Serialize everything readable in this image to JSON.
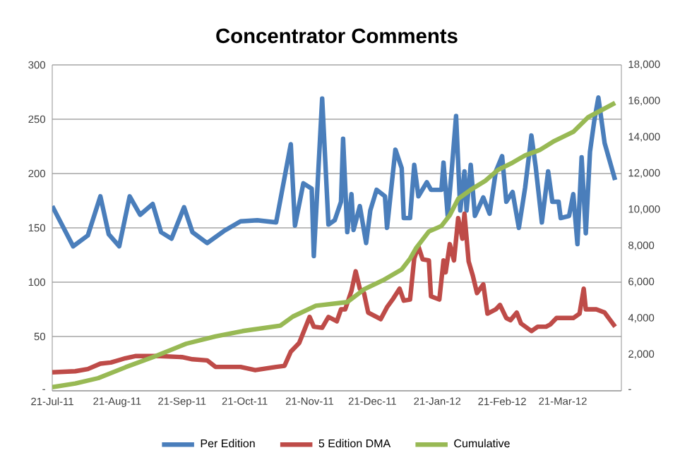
{
  "chart_data": {
    "type": "line",
    "title": "Concentrator Comments",
    "xlim": [
      "2011-07-21",
      "2012-04-18"
    ],
    "xticks": [
      {
        "value": "2011-07-21",
        "label": "21-Jul-11"
      },
      {
        "value": "2011-08-21",
        "label": "21-Aug-11"
      },
      {
        "value": "2011-09-21",
        "label": "21-Sep-11"
      },
      {
        "value": "2011-10-21",
        "label": "21-Oct-11"
      },
      {
        "value": "2011-11-21",
        "label": "21-Nov-11"
      },
      {
        "value": "2011-12-21",
        "label": "21-Dec-11"
      },
      {
        "value": "2012-01-21",
        "label": "21-Jan-12"
      },
      {
        "value": "2012-02-21",
        "label": "21-Feb-12"
      },
      {
        "value": "2012-03-21",
        "label": "21-Mar-12"
      }
    ],
    "ylim": [
      0,
      300
    ],
    "yticks": [
      {
        "value": 0,
        "label": "-"
      },
      50,
      100,
      150,
      200,
      250,
      300
    ],
    "y2lim": [
      0,
      18000
    ],
    "y2ticks": [
      {
        "value": 0,
        "label": "-"
      },
      {
        "value": 2000,
        "label": "2,000"
      },
      {
        "value": 4000,
        "label": "4,000"
      },
      {
        "value": 6000,
        "label": "6,000"
      },
      {
        "value": 8000,
        "label": "8,000"
      },
      {
        "value": 10000,
        "label": "10,000"
      },
      {
        "value": 12000,
        "label": "12,000"
      },
      {
        "value": 14000,
        "label": "14,000"
      },
      {
        "value": 16000,
        "label": "16,000"
      },
      {
        "value": 18000,
        "label": "18,000"
      }
    ],
    "grid": "y",
    "legend": "bottom",
    "marker": "none",
    "line_style": "solid",
    "series": [
      {
        "name": "Per Edition",
        "color": "#4a7ebb",
        "x": [
          "2011-07-21",
          "2011-07-31",
          "2011-08-07",
          "2011-08-13",
          "2011-08-17",
          "2011-08-22",
          "2011-08-27",
          "2011-09-01",
          "2011-09-07",
          "2011-09-11",
          "2011-09-16",
          "2011-09-22",
          "2011-09-26",
          "2011-10-03",
          "2011-10-11",
          "2011-10-19",
          "2011-10-27",
          "2011-11-05",
          "2011-11-12",
          "2011-11-14",
          "2011-11-18",
          "2011-11-22",
          "2011-11-23",
          "2011-11-27",
          "2011-11-30",
          "2011-12-03",
          "2011-12-06",
          "2011-12-07",
          "2011-12-09",
          "2011-12-11",
          "2011-12-12",
          "2011-12-15",
          "2011-12-18",
          "2011-12-20",
          "2011-12-23",
          "2011-12-27",
          "2011-12-28",
          "2012-01-01",
          "2012-01-04",
          "2012-01-05",
          "2012-01-08",
          "2012-01-10",
          "2012-01-12",
          "2012-01-16",
          "2012-01-18",
          "2012-01-23",
          "2012-01-24",
          "2012-01-26",
          "2012-01-28",
          "2012-01-30",
          "2012-02-01",
          "2012-02-03",
          "2012-02-04",
          "2012-02-06",
          "2012-02-08",
          "2012-02-12",
          "2012-02-15",
          "2012-02-18",
          "2012-02-21",
          "2012-02-23",
          "2012-02-26",
          "2012-02-29",
          "2012-03-03",
          "2012-03-06",
          "2012-03-08",
          "2012-03-11",
          "2012-03-14",
          "2012-03-16",
          "2012-03-19",
          "2012-03-20",
          "2012-03-24",
          "2012-03-26",
          "2012-03-28",
          "2012-03-30",
          "2012-04-01",
          "2012-04-03",
          "2012-04-05",
          "2012-04-07",
          "2012-04-10",
          "2012-04-15"
        ],
        "values": [
          170,
          133,
          143,
          179,
          144,
          133,
          179,
          162,
          172,
          146,
          140,
          169,
          146,
          136,
          147,
          156,
          157,
          155,
          227,
          152,
          191,
          186,
          124,
          269,
          153,
          157,
          174,
          232,
          146,
          181,
          148,
          170,
          136,
          166,
          185,
          179,
          150,
          222,
          205,
          159,
          159,
          208,
          179,
          192,
          185,
          185,
          210,
          161,
          205,
          253,
          166,
          202,
          166,
          208,
          161,
          178,
          163,
          202,
          216,
          174,
          183,
          150,
          187,
          235,
          207,
          155,
          202,
          174,
          174,
          159,
          161,
          181,
          135,
          215,
          145,
          220,
          248,
          270,
          228,
          194
        ]
      },
      {
        "name": "5  Edition DMA",
        "color": "#be4b48",
        "x": [
          "2011-07-21",
          "2011-08-01",
          "2011-08-07",
          "2011-08-13",
          "2011-08-18",
          "2011-08-25",
          "2011-08-30",
          "2011-09-10",
          "2011-09-21",
          "2011-09-26",
          "2011-10-03",
          "2011-10-07",
          "2011-10-19",
          "2011-10-26",
          "2011-11-05",
          "2011-11-09",
          "2011-11-12",
          "2011-11-16",
          "2011-11-21",
          "2011-11-23",
          "2011-11-27",
          "2011-11-30",
          "2011-12-04",
          "2011-12-06",
          "2011-12-08",
          "2011-12-11",
          "2011-12-13",
          "2011-12-15",
          "2011-12-17",
          "2011-12-19",
          "2011-12-25",
          "2011-12-28",
          "2011-12-31",
          "2012-01-03",
          "2012-01-05",
          "2012-01-08",
          "2012-01-10",
          "2012-01-12",
          "2012-01-14",
          "2012-01-17",
          "2012-01-18",
          "2012-01-22",
          "2012-01-24",
          "2012-01-25",
          "2012-01-27",
          "2012-01-29",
          "2012-01-31",
          "2012-02-02",
          "2012-02-03",
          "2012-02-05",
          "2012-02-07",
          "2012-02-09",
          "2012-02-12",
          "2012-02-14",
          "2012-02-18",
          "2012-02-20",
          "2012-02-23",
          "2012-02-25",
          "2012-02-28",
          "2012-03-01",
          "2012-03-06",
          "2012-03-09",
          "2012-03-13",
          "2012-03-15",
          "2012-03-18",
          "2012-03-22",
          "2012-03-26",
          "2012-03-29",
          "2012-03-31",
          "2012-04-01",
          "2012-04-06",
          "2012-04-10",
          "2012-04-15"
        ],
        "values": [
          17,
          18,
          20,
          25,
          26,
          30,
          32,
          32,
          31,
          29,
          28,
          22,
          22,
          19,
          22,
          23,
          36,
          44,
          68,
          59,
          58,
          68,
          64,
          75,
          75,
          92,
          110,
          94,
          90,
          72,
          66,
          77,
          85,
          94,
          83,
          84,
          122,
          133,
          121,
          120,
          87,
          84,
          120,
          109,
          135,
          120,
          159,
          140,
          163,
          119,
          106,
          90,
          98,
          71,
          75,
          79,
          67,
          65,
          72,
          62,
          55,
          59,
          59,
          61,
          67,
          67,
          67,
          71,
          94,
          75,
          75,
          72,
          59
        ]
      },
      {
        "name": "Cumulative",
        "color": "#98b954",
        "axis": "y2",
        "x": [
          "2011-07-21",
          "2011-08-01",
          "2011-08-12",
          "2011-08-25",
          "2011-09-08",
          "2011-09-23",
          "2011-10-07",
          "2011-10-20",
          "2011-11-07",
          "2011-11-13",
          "2011-11-24",
          "2011-12-09",
          "2011-12-17",
          "2011-12-26",
          "2012-01-04",
          "2012-01-08",
          "2012-01-11",
          "2012-01-17",
          "2012-01-23",
          "2012-01-27",
          "2012-01-31",
          "2012-02-06",
          "2012-02-13",
          "2012-02-19",
          "2012-02-26",
          "2012-03-03",
          "2012-03-10",
          "2012-03-17",
          "2012-03-26",
          "2012-04-02",
          "2012-04-15"
        ],
        "values": [
          200,
          400,
          700,
          1300,
          1900,
          2600,
          3000,
          3300,
          3600,
          4100,
          4700,
          4900,
          5600,
          6100,
          6700,
          7300,
          7900,
          8800,
          9100,
          9700,
          10600,
          11100,
          11600,
          12200,
          12600,
          13000,
          13300,
          13800,
          14300,
          15100,
          15900
        ]
      }
    ]
  }
}
